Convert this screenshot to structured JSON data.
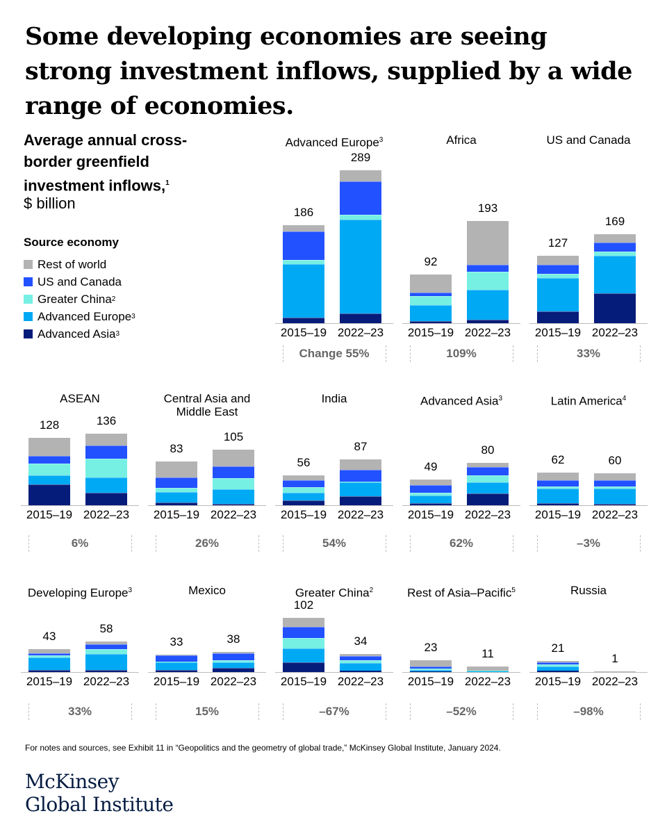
{
  "headline": "Some developing economies are seeing strong investment inflows, supplied by a wide range of economies.",
  "subtitle": {
    "text": "Average annual cross-border greenfield investment inflows,",
    "sup": "1",
    "unit": "$ billion"
  },
  "legend": {
    "title": "Source economy",
    "items": [
      {
        "label": "Rest of world",
        "sup": "",
        "color": "#b3b3b3"
      },
      {
        "label": "US and Canada",
        "sup": "",
        "color": "#2251ff"
      },
      {
        "label": "Greater China",
        "sup": "2",
        "color": "#76f0e3"
      },
      {
        "label": "Advanced Europe",
        "sup": "3",
        "color": "#00a9f4"
      },
      {
        "label": "Advanced Asia",
        "sup": "3",
        "color": "#051c7a"
      }
    ]
  },
  "chart_data": [
    {
      "type": "bar",
      "stacked": true,
      "title": "Advanced Europe",
      "sup": "3",
      "categories": [
        "2015–19",
        "2022–23"
      ],
      "totals": [
        186,
        289
      ],
      "change": "Change 55%",
      "series": [
        {
          "name": "Advanced Asia",
          "values": [
            11,
            18
          ]
        },
        {
          "name": "Advanced Europe",
          "values": [
            101,
            178
          ]
        },
        {
          "name": "Greater China",
          "values": [
            8,
            9
          ]
        },
        {
          "name": "US and Canada",
          "values": [
            54,
            63
          ]
        },
        {
          "name": "Rest of world",
          "values": [
            12,
            21
          ]
        }
      ]
    },
    {
      "type": "bar",
      "stacked": true,
      "title": "Africa",
      "sup": "",
      "categories": [
        "2015–19",
        "2022–23"
      ],
      "totals": [
        92,
        193
      ],
      "change": "109%",
      "series": [
        {
          "name": "Advanced Asia",
          "values": [
            4,
            7
          ]
        },
        {
          "name": "Advanced Europe",
          "values": [
            30,
            56
          ]
        },
        {
          "name": "Greater China",
          "values": [
            17,
            35
          ]
        },
        {
          "name": "US and Canada",
          "values": [
            7,
            12
          ]
        },
        {
          "name": "Rest of world",
          "values": [
            34,
            83
          ]
        }
      ]
    },
    {
      "type": "bar",
      "stacked": true,
      "title": "US and Canada",
      "sup": "",
      "categories": [
        "2015–19",
        "2022–23"
      ],
      "totals": [
        127,
        169
      ],
      "change": "33%",
      "series": [
        {
          "name": "Advanced Asia",
          "values": [
            22,
            56
          ]
        },
        {
          "name": "Advanced Europe",
          "values": [
            63,
            71
          ]
        },
        {
          "name": "Greater China",
          "values": [
            9,
            8
          ]
        },
        {
          "name": "US and Canada",
          "values": [
            17,
            17
          ]
        },
        {
          "name": "Rest of world",
          "values": [
            16,
            17
          ]
        }
      ]
    },
    {
      "type": "bar",
      "stacked": true,
      "title": "ASEAN",
      "sup": "",
      "categories": [
        "2015–19",
        "2022–23"
      ],
      "totals": [
        128,
        136
      ],
      "change": "6%",
      "series": [
        {
          "name": "Advanced Asia",
          "values": [
            39,
            24
          ]
        },
        {
          "name": "Advanced Europe",
          "values": [
            18,
            29
          ]
        },
        {
          "name": "Greater China",
          "values": [
            22,
            35
          ]
        },
        {
          "name": "US and Canada",
          "values": [
            14,
            25
          ]
        },
        {
          "name": "Rest of world",
          "values": [
            35,
            23
          ]
        }
      ]
    },
    {
      "type": "bar",
      "stacked": true,
      "title": "Central Asia and Middle East",
      "sup": "",
      "categories": [
        "2015–19",
        "2022–23"
      ],
      "totals": [
        83,
        105
      ],
      "change": "26%",
      "series": [
        {
          "name": "Advanced Asia",
          "values": [
            5,
            3
          ]
        },
        {
          "name": "Advanced Europe",
          "values": [
            20,
            27
          ]
        },
        {
          "name": "Greater China",
          "values": [
            8,
            21
          ]
        },
        {
          "name": "US and Canada",
          "values": [
            20,
            23
          ]
        },
        {
          "name": "Rest of world",
          "values": [
            30,
            31
          ]
        }
      ]
    },
    {
      "type": "bar",
      "stacked": true,
      "title": "India",
      "sup": "",
      "categories": [
        "2015–19",
        "2022–23"
      ],
      "totals": [
        56,
        87
      ],
      "change": "54%",
      "series": [
        {
          "name": "Advanced Asia",
          "values": [
            9,
            17
          ]
        },
        {
          "name": "Advanced Europe",
          "values": [
            15,
            27
          ]
        },
        {
          "name": "Greater China",
          "values": [
            10,
            1
          ]
        },
        {
          "name": "US and Canada",
          "values": [
            14,
            22
          ]
        },
        {
          "name": "Rest of world",
          "values": [
            8,
            20
          ]
        }
      ]
    },
    {
      "type": "bar",
      "stacked": true,
      "title": "Advanced Asia",
      "sup": "3",
      "categories": [
        "2015–19",
        "2022–23"
      ],
      "totals": [
        49,
        80
      ],
      "change": "62%",
      "series": [
        {
          "name": "Advanced Asia",
          "values": [
            4,
            22
          ]
        },
        {
          "name": "Advanced Europe",
          "values": [
            14,
            22
          ]
        },
        {
          "name": "Greater China",
          "values": [
            6,
            13
          ]
        },
        {
          "name": "US and Canada",
          "values": [
            14,
            15
          ]
        },
        {
          "name": "Rest of world",
          "values": [
            11,
            8
          ]
        }
      ]
    },
    {
      "type": "bar",
      "stacked": true,
      "title": "Latin America",
      "sup": "4",
      "categories": [
        "2015–19",
        "2022–23"
      ],
      "totals": [
        62,
        60
      ],
      "change": "–3%",
      "series": [
        {
          "name": "Advanced Asia",
          "values": [
            4,
            3
          ]
        },
        {
          "name": "Advanced Europe",
          "values": [
            27,
            28
          ]
        },
        {
          "name": "Greater China",
          "values": [
            4,
            4
          ]
        },
        {
          "name": "US and Canada",
          "values": [
            13,
            13
          ]
        },
        {
          "name": "Rest of world",
          "values": [
            14,
            12
          ]
        }
      ]
    },
    {
      "type": "bar",
      "stacked": true,
      "title": "Developing Europe",
      "sup": "3",
      "categories": [
        "2015–19",
        "2022–23"
      ],
      "totals": [
        43,
        58
      ],
      "change": "33%",
      "series": [
        {
          "name": "Advanced Asia",
          "values": [
            4,
            4
          ]
        },
        {
          "name": "Advanced Europe",
          "values": [
            24,
            30
          ]
        },
        {
          "name": "Greater China",
          "values": [
            3,
            10
          ]
        },
        {
          "name": "US and Canada",
          "values": [
            5,
            8
          ]
        },
        {
          "name": "Rest of world",
          "values": [
            7,
            6
          ]
        }
      ]
    },
    {
      "type": "bar",
      "stacked": true,
      "title": "Mexico",
      "sup": "",
      "categories": [
        "2015–19",
        "2022–23"
      ],
      "totals": [
        33,
        38
      ],
      "change": "15%",
      "series": [
        {
          "name": "Advanced Asia",
          "values": [
            4,
            8
          ]
        },
        {
          "name": "Advanced Europe",
          "values": [
            14,
            11
          ]
        },
        {
          "name": "Greater China",
          "values": [
            2,
            4
          ]
        },
        {
          "name": "US and Canada",
          "values": [
            12,
            13
          ]
        },
        {
          "name": "Rest of world",
          "values": [
            1,
            2
          ]
        }
      ]
    },
    {
      "type": "bar",
      "stacked": true,
      "title": "Greater China",
      "sup": "2",
      "categories": [
        "2015–19",
        "2022–23"
      ],
      "totals": [
        102,
        34
      ],
      "change": "–67%",
      "series": [
        {
          "name": "Advanced Asia",
          "values": [
            18,
            2
          ]
        },
        {
          "name": "Advanced Europe",
          "values": [
            27,
            15
          ]
        },
        {
          "name": "Greater China",
          "values": [
            19,
            5
          ]
        },
        {
          "name": "US and Canada",
          "values": [
            22,
            8
          ]
        },
        {
          "name": "Rest of world",
          "values": [
            16,
            4
          ]
        }
      ]
    },
    {
      "type": "bar",
      "stacked": true,
      "title": "Rest of Asia–Pacific",
      "sup": "5",
      "categories": [
        "2015–19",
        "2022–23"
      ],
      "totals": [
        23,
        11
      ],
      "change": "–52%",
      "series": [
        {
          "name": "Advanced Asia",
          "values": [
            1,
            0
          ]
        },
        {
          "name": "Advanced Europe",
          "values": [
            3,
            2.5
          ]
        },
        {
          "name": "Greater China",
          "values": [
            3,
            0.5
          ]
        },
        {
          "name": "US and Canada",
          "values": [
            3,
            0
          ]
        },
        {
          "name": "Rest of world",
          "values": [
            13,
            8
          ]
        }
      ]
    },
    {
      "type": "bar",
      "stacked": true,
      "title": "Russia",
      "sup": "",
      "categories": [
        "2015–19",
        "2022–23"
      ],
      "totals": [
        21,
        1
      ],
      "change": "–98%",
      "series": [
        {
          "name": "Advanced Asia",
          "values": [
            2,
            0
          ]
        },
        {
          "name": "Advanced Europe",
          "values": [
            8,
            0.5
          ]
        },
        {
          "name": "Greater China",
          "values": [
            5,
            0
          ]
        },
        {
          "name": "US and Canada",
          "values": [
            3,
            0
          ]
        },
        {
          "name": "Rest of world",
          "values": [
            3,
            0.5
          ]
        }
      ]
    }
  ],
  "footer": "For notes and sources, see Exhibit 11 in “Geopolitics and the geometry of global trade,” McKinsey Global Institute, January 2024.",
  "logo": {
    "line1": "McKinsey",
    "line2": "Global Institute"
  }
}
